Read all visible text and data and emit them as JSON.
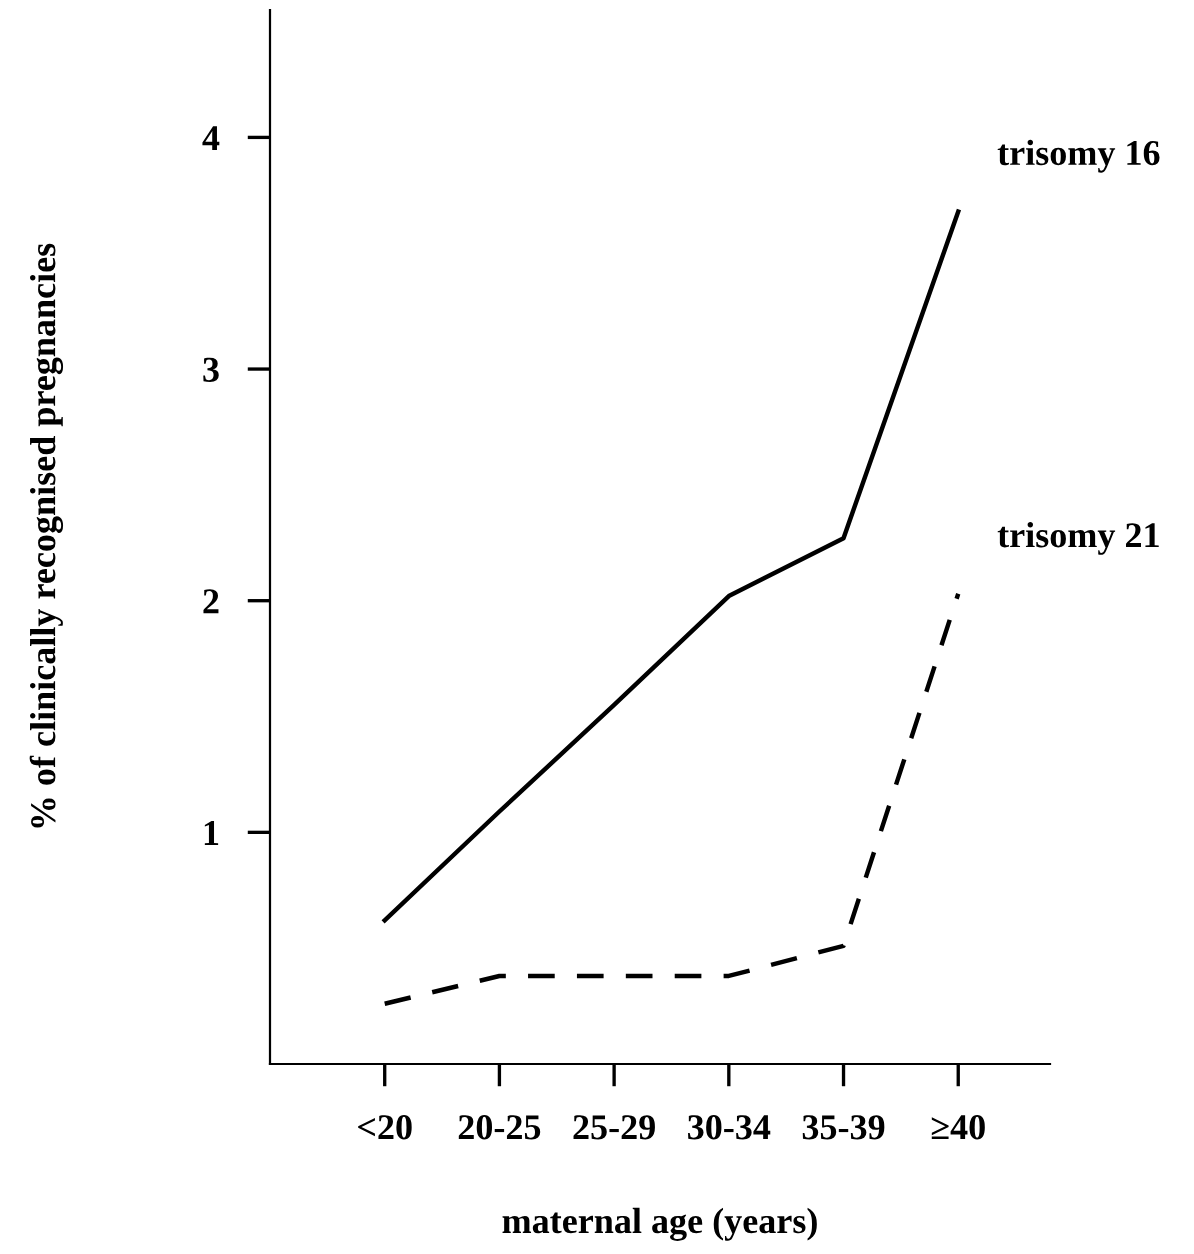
{
  "chart_data": {
    "type": "line",
    "xlabel": "maternal age (years)",
    "ylabel": "% of clinically recognised pregnancies",
    "categories": [
      "<20",
      "20-25",
      "25-29",
      "30-34",
      "35-39",
      "≥40"
    ],
    "series": [
      {
        "name": "trisomy 16",
        "color": "#000000",
        "line_style": "solid",
        "values": [
          0.62,
          1.09,
          1.55,
          2.02,
          2.27,
          3.68
        ]
      },
      {
        "name": "trisomy 21",
        "color": "#000000",
        "line_style": "dashed",
        "values": [
          0.26,
          0.38,
          0.38,
          0.38,
          0.51,
          2.03
        ]
      }
    ],
    "ylim": [
      0,
      4.55
    ],
    "yticks": [
      1,
      2,
      3,
      4
    ],
    "grid": false,
    "legend": false,
    "marker": "none"
  }
}
